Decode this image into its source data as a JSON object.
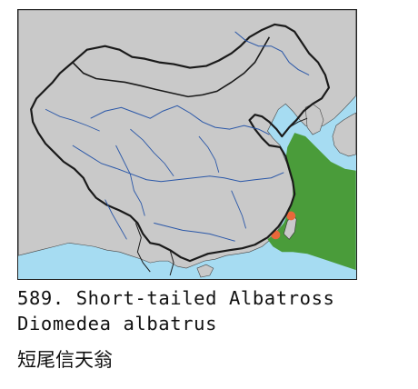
{
  "species": {
    "number": "589.",
    "common_name": "Short-tailed Albatross",
    "scientific_name": "Diomedea albatrus",
    "chinese_name": "短尾信天翁"
  },
  "map": {
    "colors": {
      "sea": "#a6dcf2",
      "land": "#c9c9c9",
      "range": "#4a9c3a",
      "breeding": "#e9683a",
      "river": "#2a57a8",
      "border": "#1a1a1a"
    },
    "legend_shown": false
  }
}
